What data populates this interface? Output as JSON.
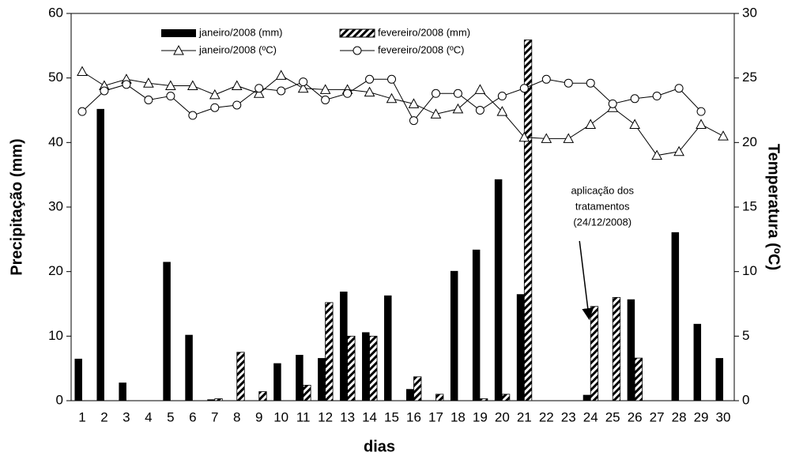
{
  "chart_data": {
    "type": "bar",
    "xlabel": "dias",
    "ylabel": "Precipitação (mm)",
    "y2label": "Temperatura (ºC)",
    "categories": [
      "1",
      "2",
      "3",
      "4",
      "5",
      "6",
      "7",
      "8",
      "9",
      "10",
      "11",
      "12",
      "13",
      "14",
      "15",
      "16",
      "17",
      "18",
      "19",
      "20",
      "21",
      "22",
      "23",
      "24",
      "25",
      "26",
      "27",
      "28",
      "29",
      "30"
    ],
    "series": [
      {
        "name": "janeiro/2008 (mm)",
        "type": "bar",
        "fill": "solid",
        "color": "#000000",
        "values": [
          6.5,
          45.2,
          2.8,
          0,
          21.5,
          10.2,
          0.2,
          0,
          0,
          5.8,
          7.1,
          6.6,
          16.9,
          10.6,
          16.3,
          1.8,
          0,
          20.1,
          23.4,
          34.3,
          16.5,
          0,
          0,
          0.9,
          0,
          15.7,
          0,
          26.1,
          11.9,
          6.6
        ]
      },
      {
        "name": "fevereiro/2008 (mm)",
        "type": "bar",
        "fill": "hatch",
        "color": "#000000",
        "values": [
          0,
          0,
          0,
          0,
          0,
          0,
          0.3,
          7.5,
          1.4,
          0,
          2.4,
          15.2,
          10.0,
          10.0,
          0,
          3.7,
          1.0,
          0,
          0.3,
          1.0,
          55.9,
          0,
          0,
          14.6,
          16.0,
          6.6,
          0,
          0,
          0,
          0
        ]
      },
      {
        "name": "janeiro/2008 (ºC)",
        "type": "line",
        "marker": "triangle",
        "color": "#000000",
        "axis": "y2",
        "values": [
          25.5,
          24.4,
          24.9,
          24.6,
          24.4,
          24.4,
          23.7,
          24.4,
          23.8,
          25.2,
          24.2,
          24.1,
          24.1,
          23.9,
          23.4,
          23.0,
          22.2,
          22.6,
          24.1,
          22.4,
          20.4,
          20.3,
          20.3,
          21.4,
          22.7,
          21.4,
          19.0,
          19.3,
          21.4,
          20.5
        ]
      },
      {
        "name": "fevereiro/2008 (ºC)",
        "type": "line",
        "marker": "circle",
        "color": "#000000",
        "axis": "y2",
        "values": [
          22.4,
          24.0,
          24.5,
          23.3,
          23.6,
          22.1,
          22.7,
          22.9,
          24.2,
          24.0,
          24.7,
          23.3,
          23.8,
          24.9,
          24.9,
          21.7,
          23.8,
          23.8,
          22.5,
          23.6,
          24.2,
          24.9,
          24.6,
          24.6,
          23.0,
          23.4,
          23.6,
          24.2,
          22.4,
          null
        ]
      }
    ],
    "ylim": [
      0,
      60
    ],
    "yticks": [
      0,
      10,
      20,
      30,
      40,
      50,
      60
    ],
    "y2lim": [
      0,
      30
    ],
    "y2ticks": [
      0,
      5,
      10,
      15,
      20,
      25,
      30
    ],
    "grid": false,
    "annotation": {
      "lines": [
        "aplicação dos",
        "tratamentos",
        "(24/12/2008)"
      ],
      "category": "24"
    }
  }
}
